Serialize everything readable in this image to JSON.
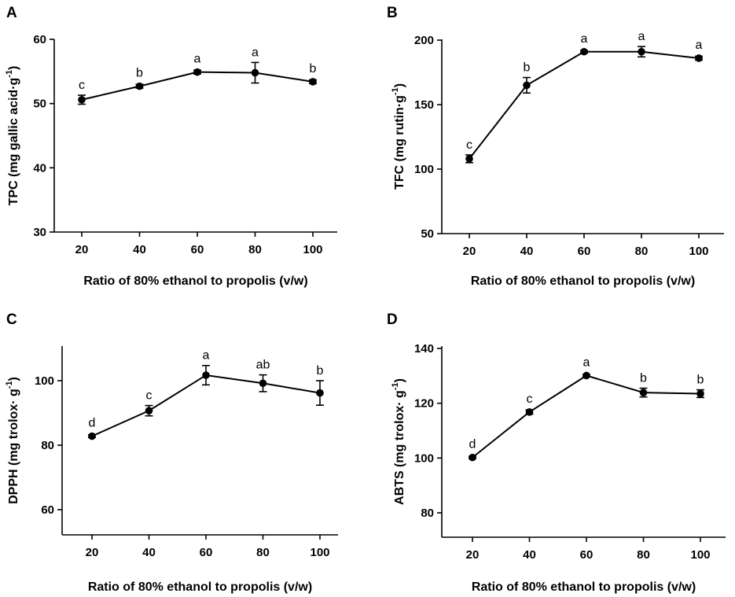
{
  "chart_data": [
    {
      "type": "line",
      "panel": "A",
      "ylabel_main": "TPC (mg gallic acid·g",
      "ylabel_sup": "-1",
      "ylabel_end": ")",
      "xlabel": "Ratio of 80% ethanol to propolis (v/w)",
      "x": [
        20,
        40,
        60,
        80,
        100
      ],
      "x_ticks": [
        "20",
        "40",
        "60",
        "80",
        "100"
      ],
      "ylim": [
        30,
        60
      ],
      "y_ticks": [
        30,
        40,
        50,
        60
      ],
      "values": [
        50.6,
        52.7,
        54.9,
        54.8,
        53.4
      ],
      "errors": [
        0.7,
        0.3,
        0.3,
        1.6,
        0.3
      ],
      "letters": [
        "c",
        "b",
        "a",
        "a",
        "b"
      ]
    },
    {
      "type": "line",
      "panel": "B",
      "ylabel_main": "TFC (mg rutin·g",
      "ylabel_sup": "-1",
      "ylabel_end": ")",
      "xlabel": "Ratio of 80% ethanol to propolis (v/w)",
      "x": [
        20,
        40,
        60,
        80,
        100
      ],
      "x_ticks": [
        "20",
        "40",
        "60",
        "80",
        "100"
      ],
      "ylim": [
        50,
        200
      ],
      "y_ticks": [
        50,
        100,
        150,
        200
      ],
      "values": [
        108,
        165,
        191,
        191,
        186
      ],
      "errors": [
        3,
        6,
        1,
        4,
        1.5
      ],
      "letters": [
        "c",
        "b",
        "a",
        "a",
        "a"
      ]
    },
    {
      "type": "line",
      "panel": "C",
      "ylabel_main": "DPPH (mg trolox· g",
      "ylabel_sup": "-1",
      "ylabel_end": ")",
      "xlabel": "Ratio of 80% ethanol to propolis (v/w)",
      "x": [
        20,
        40,
        60,
        80,
        100
      ],
      "x_ticks": [
        "20",
        "40",
        "60",
        "80",
        "100"
      ],
      "ylim": [
        50,
        110
      ],
      "y_ticks": [
        60,
        80,
        100
      ],
      "values": [
        82.8,
        90.7,
        101.7,
        99.2,
        96.2
      ],
      "errors": [
        0.4,
        1.6,
        3,
        2.6,
        3.8
      ],
      "letters": [
        "d",
        "c",
        "a",
        "ab",
        "b"
      ]
    },
    {
      "type": "line",
      "panel": "D",
      "ylabel_main": "ABTS (mg trolox· g",
      "ylabel_sup": "-1",
      "ylabel_end": ")",
      "xlabel": "Ratio of 80% ethanol to propolis (v/w)",
      "x": [
        20,
        40,
        60,
        80,
        100
      ],
      "x_ticks": [
        "20",
        "40",
        "60",
        "80",
        "100"
      ],
      "ylim": [
        70,
        140
      ],
      "y_ticks": [
        80,
        100,
        120,
        140
      ],
      "values": [
        100.2,
        116.8,
        130.1,
        123.9,
        123.5
      ],
      "errors": [
        0.4,
        0.8,
        0.4,
        1.6,
        1.4
      ],
      "letters": [
        "d",
        "c",
        "a",
        "b",
        "b"
      ]
    }
  ]
}
